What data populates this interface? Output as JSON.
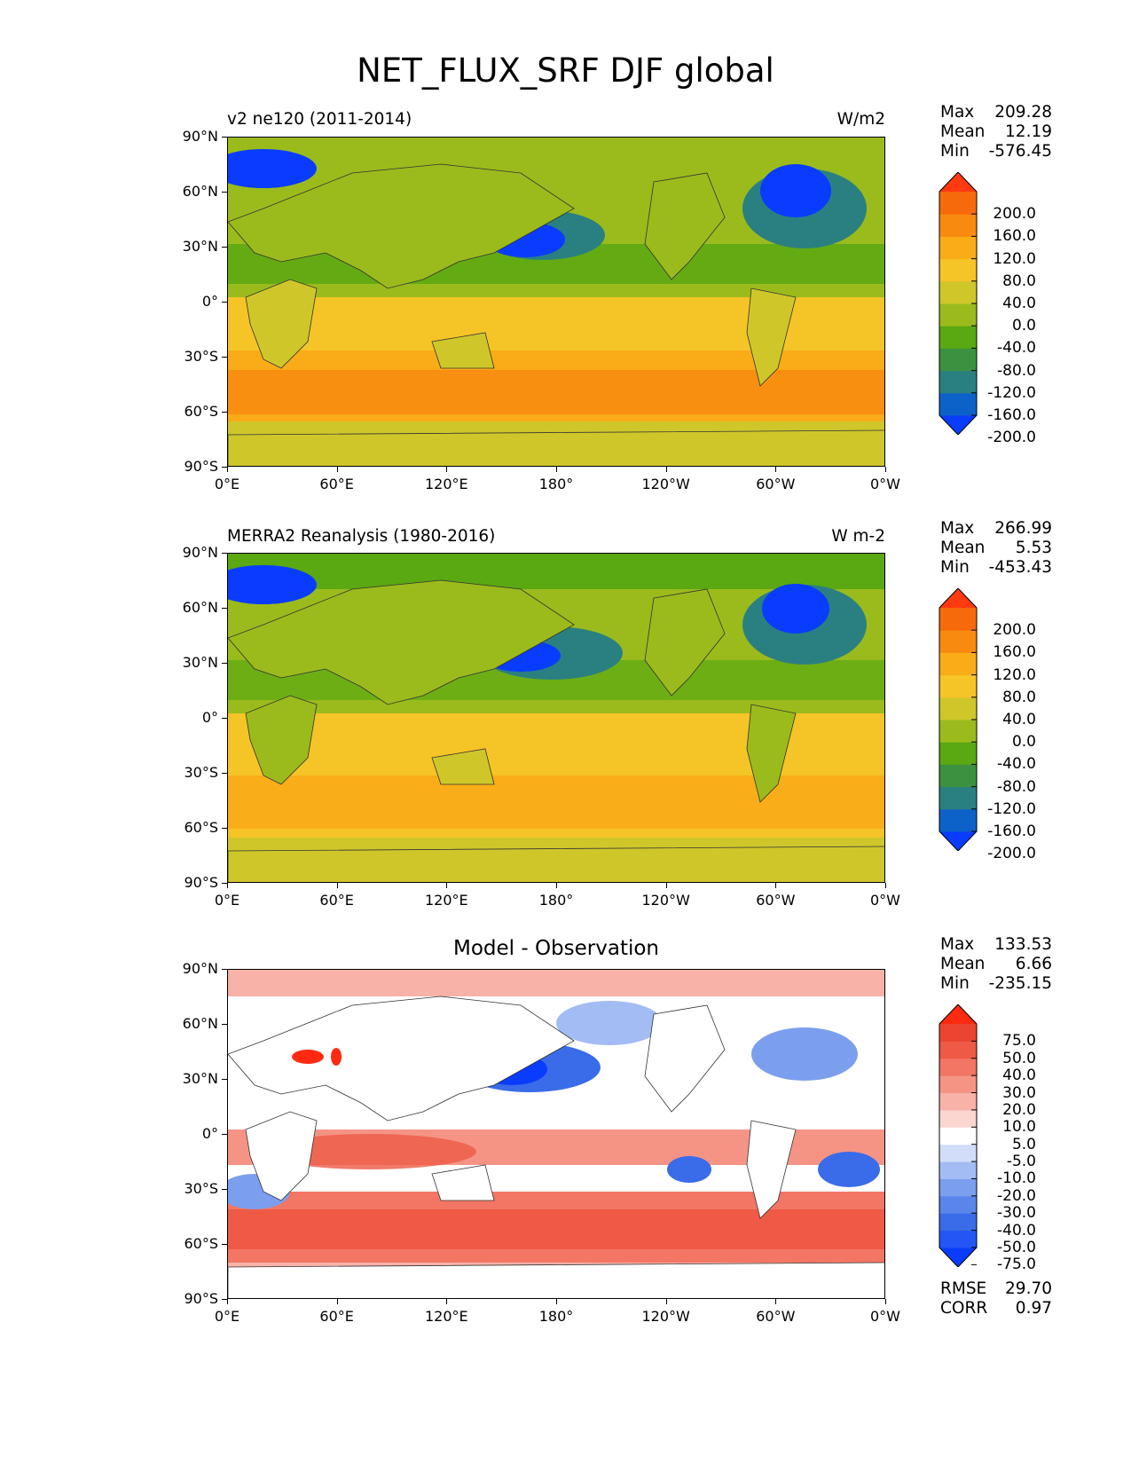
{
  "figure": {
    "title": "NET_FLUX_SRF DJF global"
  },
  "axes": {
    "lat_labels": [
      "90°N",
      "60°N",
      "30°N",
      "0°",
      "30°S",
      "60°S",
      "90°S"
    ],
    "lon_labels": [
      "0°E",
      "60°E",
      "120°E",
      "180°",
      "120°W",
      "60°W",
      "0°W"
    ]
  },
  "panels": [
    {
      "left_label": "v2 ne120 (2011-2014)",
      "right_label": "W/m2",
      "center_label": "",
      "stats": [
        {
          "label": "Max",
          "value": "209.28"
        },
        {
          "label": "Mean",
          "value": "12.19"
        },
        {
          "label": "Min",
          "value": "-576.45"
        }
      ],
      "colorbar": {
        "ticks": [
          "200.0",
          "160.0",
          "120.0",
          "80.0",
          "40.0",
          "0.0",
          "-40.0",
          "-80.0",
          "-120.0",
          "-160.0",
          "-200.0"
        ],
        "colors": [
          "#0a3cff",
          "#0d62c9",
          "#2a8080",
          "#3b9140",
          "#5aa812",
          "#9bbb1c",
          "#cfc72a",
          "#f5c427",
          "#f9ab18",
          "#f98a10",
          "#f76a0c",
          "#ff3a10"
        ]
      }
    },
    {
      "left_label": "MERRA2 Reanalysis (1980-2016)",
      "right_label": "W m-2",
      "center_label": "",
      "stats": [
        {
          "label": "Max",
          "value": "266.99"
        },
        {
          "label": "Mean",
          "value": "5.53"
        },
        {
          "label": "Min",
          "value": "-453.43"
        }
      ],
      "colorbar": {
        "ticks": [
          "200.0",
          "160.0",
          "120.0",
          "80.0",
          "40.0",
          "0.0",
          "-40.0",
          "-80.0",
          "-120.0",
          "-160.0",
          "-200.0"
        ],
        "colors": [
          "#0a3cff",
          "#0d62c9",
          "#2a8080",
          "#3b9140",
          "#5aa812",
          "#9bbb1c",
          "#cfc72a",
          "#f5c427",
          "#f9ab18",
          "#f98a10",
          "#f76a0c",
          "#ff3a10"
        ]
      }
    },
    {
      "left_label": "",
      "right_label": "",
      "center_label": "Model - Observation",
      "stats": [
        {
          "label": "Max",
          "value": "133.53"
        },
        {
          "label": "Mean",
          "value": "6.66"
        },
        {
          "label": "Min",
          "value": "-235.15"
        }
      ],
      "extra_stats": [
        {
          "label": "RMSE",
          "value": "29.70"
        },
        {
          "label": "CORR",
          "value": "0.97"
        }
      ],
      "colorbar": {
        "ticks": [
          "75.0",
          "50.0",
          "40.0",
          "30.0",
          "20.0",
          "10.0",
          "5.0",
          "-5.0",
          "-10.0",
          "-20.0",
          "-30.0",
          "-40.0",
          "-50.0",
          "-75.0"
        ],
        "colors": [
          "#0a3cff",
          "#2356f5",
          "#3a6be8",
          "#5a85ea",
          "#7b9fee",
          "#a3bcf3",
          "#d2ddf9",
          "#ffffff",
          "#fbd5d0",
          "#f8b2a8",
          "#f59485",
          "#f27663",
          "#ee5a45",
          "#eb4430",
          "#ff2a10"
        ]
      }
    }
  ]
}
